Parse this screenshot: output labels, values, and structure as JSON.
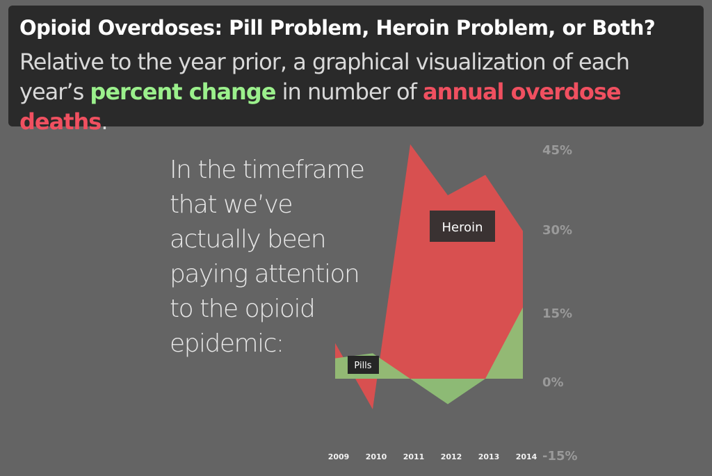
{
  "header": {
    "title": "Opioid Overdoses: Pill Problem, Heroin Problem, or Both?",
    "subtitle_line1": "Relative to the year prior, a graphical visualization of each",
    "subtitle_prefix": "year’s ",
    "highlight_green": "percent change",
    "subtitle_mid": " in number of ",
    "highlight_red": "annual overdose deaths",
    "subtitle_end": "."
  },
  "narrative": {
    "lines": [
      "In the timeframe",
      "that we’ve",
      "actually been",
      "paying attention",
      "to the opioid",
      "epidemic:"
    ]
  },
  "colors": {
    "background": "#646464",
    "header_bg": "#2a2a2a",
    "heroin": "#d85050",
    "pills": "#8fbf76",
    "green_text": "#9bf08c",
    "red_text": "#f05060"
  },
  "chart_data": {
    "type": "area",
    "x": [
      "2009",
      "2010",
      "2011",
      "2012",
      "2013",
      "2014"
    ],
    "series": [
      {
        "name": "Heroin",
        "values": [
          7,
          -6,
          46,
          36,
          40,
          29
        ]
      },
      {
        "name": "Pills",
        "values": [
          4,
          5,
          0,
          -5,
          0,
          14
        ]
      }
    ],
    "y_ticks": [
      "45%",
      "30%",
      "15%",
      "0%",
      "-15%"
    ],
    "ylim": [
      -15,
      45
    ],
    "labels": {
      "heroin": "Heroin",
      "pills": "Pills"
    }
  }
}
